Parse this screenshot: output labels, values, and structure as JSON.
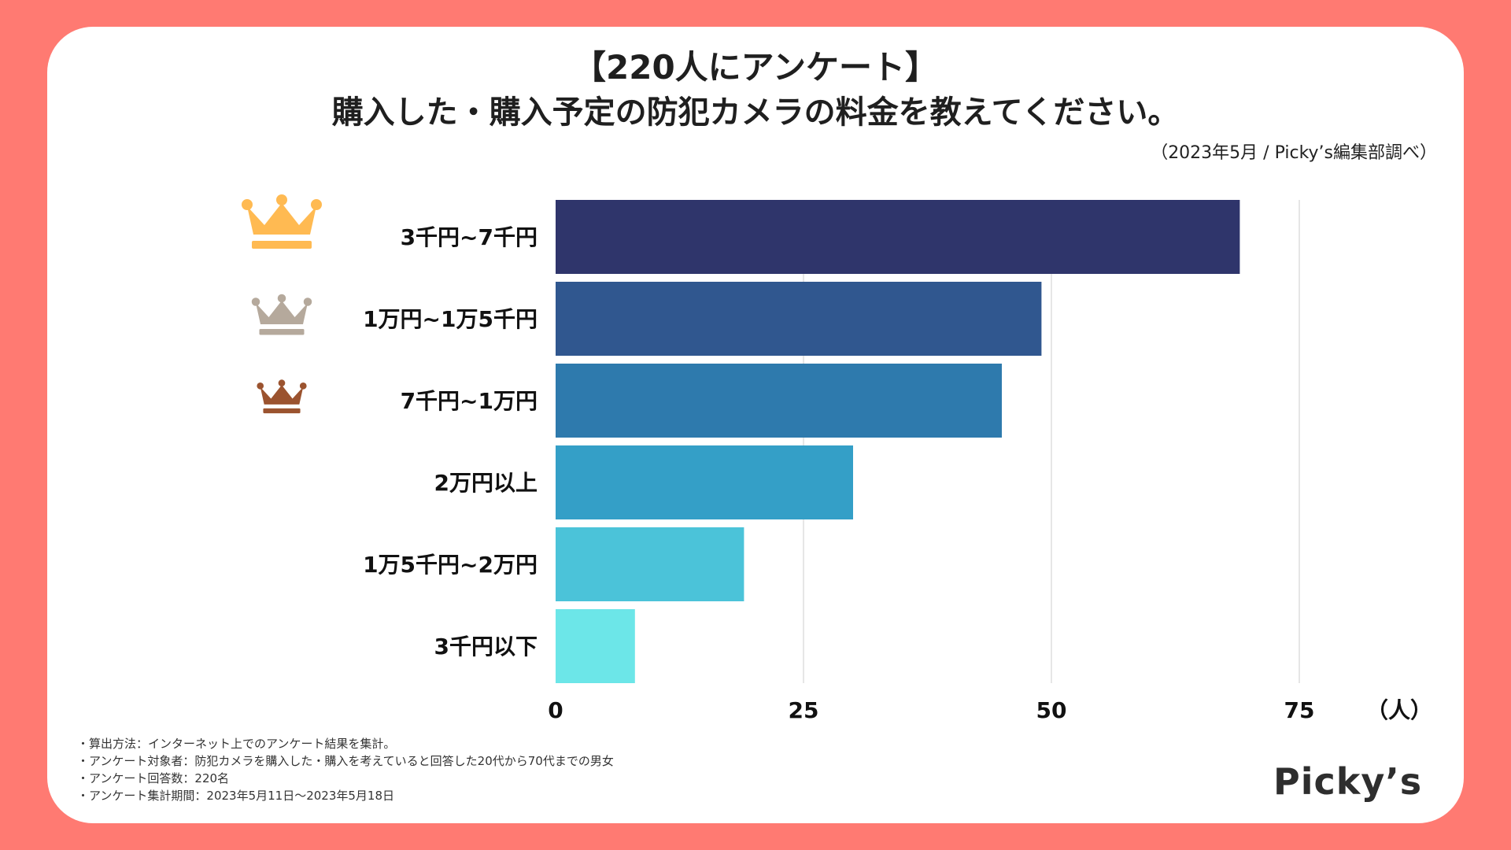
{
  "header": {
    "title_line1": "【220人にアンケート】",
    "title_line2": "購入した・購入予定の防犯カメラの料金を教えてください。",
    "source": "（2023年5月 / Picky’s編集部調べ）"
  },
  "chart_data": {
    "type": "bar",
    "orientation": "horizontal",
    "categories": [
      "3千円~7千円",
      "1万円~1万5千円",
      "7千円~1万円",
      "2万円以上",
      "1万5千円~2万円",
      "3千円以下"
    ],
    "values": [
      69,
      49,
      45,
      30,
      19,
      8
    ],
    "bar_colors": [
      "#2f356b",
      "#30578f",
      "#2e7aad",
      "#349fc7",
      "#4bc3d9",
      "#6ce6e8"
    ],
    "xlim": [
      0,
      75
    ],
    "xticks": [
      0,
      25,
      50,
      75
    ],
    "xlabel": "（人）",
    "grid": true,
    "rank_icons": [
      {
        "name": "gold-crown-icon",
        "color": "#ffba52"
      },
      {
        "name": "silver-crown-icon",
        "color": "#b5a99c"
      },
      {
        "name": "bronze-crown-icon",
        "color": "#9b532f"
      }
    ]
  },
  "footer": {
    "notes": [
      "・算出方法：インターネット上でのアンケート結果を集計。",
      "・アンケート対象者：防犯カメラを購入した・購入を考えていると回答した20代から70代までの男女",
      "・アンケート回答数：220名",
      "・アンケート集計期間：2023年5月11日〜2023年5月18日"
    ],
    "logo": "Picky’s"
  }
}
